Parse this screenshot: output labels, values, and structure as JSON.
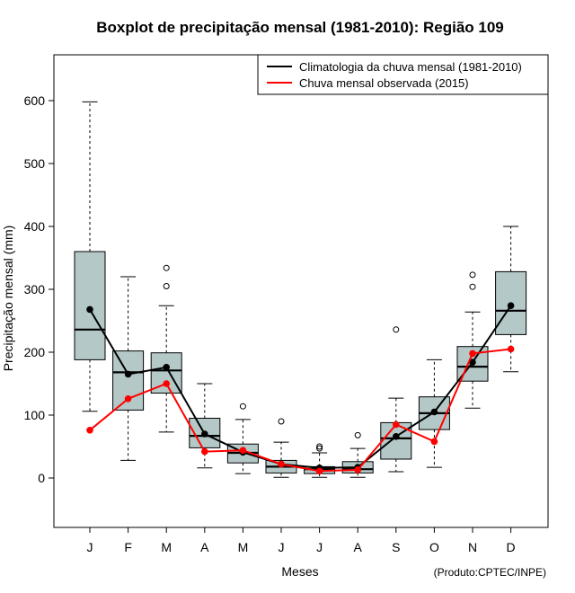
{
  "chart_data": {
    "type": "boxplot",
    "title": "Boxplot de precipitação mensal (1981-2010): Região 109",
    "xlabel": "Meses",
    "ylabel": "Precipitação mensal (mm)",
    "ylim": [
      -75,
      665
    ],
    "yticks": [
      0,
      100,
      200,
      300,
      400,
      500,
      600
    ],
    "categories": [
      "J",
      "F",
      "M",
      "A",
      "M",
      "J",
      "J",
      "A",
      "S",
      "O",
      "N",
      "D"
    ],
    "boxes": [
      {
        "min": 106,
        "q1": 188,
        "median": 236,
        "q3": 360,
        "max": 598,
        "outliers": []
      },
      {
        "min": 28,
        "q1": 108,
        "median": 168,
        "q3": 202,
        "max": 320,
        "outliers": []
      },
      {
        "min": 73,
        "q1": 135,
        "median": 171,
        "q3": 199,
        "max": 274,
        "outliers": [
          305,
          334
        ]
      },
      {
        "min": 16,
        "q1": 48,
        "median": 67,
        "q3": 95,
        "max": 150,
        "outliers": []
      },
      {
        "min": 7,
        "q1": 24,
        "median": 40,
        "q3": 54,
        "max": 93,
        "outliers": [
          114
        ]
      },
      {
        "min": 1,
        "q1": 8,
        "median": 18,
        "q3": 28,
        "max": 57,
        "outliers": [
          90
        ]
      },
      {
        "min": 1,
        "q1": 7,
        "median": 14,
        "q3": 18,
        "max": 40,
        "outliers": [
          47,
          50
        ]
      },
      {
        "min": 1,
        "q1": 8,
        "median": 14,
        "q3": 26,
        "max": 47,
        "outliers": [
          68
        ]
      },
      {
        "min": 10,
        "q1": 30,
        "median": 63,
        "q3": 88,
        "max": 127,
        "outliers": [
          236
        ]
      },
      {
        "min": 17,
        "q1": 77,
        "median": 103,
        "q3": 129,
        "max": 188,
        "outliers": []
      },
      {
        "min": 111,
        "q1": 154,
        "median": 177,
        "q3": 209,
        "max": 264,
        "outliers": [
          304,
          323
        ]
      },
      {
        "min": 169,
        "q1": 228,
        "median": 266,
        "q3": 328,
        "max": 400,
        "outliers": []
      }
    ],
    "series": [
      {
        "name": "Climatologia da chuva mensal (1981-2010)",
        "color": "#000000",
        "values": [
          268,
          165,
          176,
          70,
          41,
          22,
          16,
          17,
          66,
          105,
          184,
          274
        ]
      },
      {
        "name": "Chuva mensal observada (2015)",
        "color": "#ff0000",
        "values": [
          76,
          126,
          150,
          42,
          44,
          22,
          11,
          13,
          85,
          58,
          198,
          205
        ]
      }
    ],
    "legend_position": "top-right",
    "box_fill": "#b4c8c8"
  },
  "credit": "(Produto:CPTEC/INPE)"
}
